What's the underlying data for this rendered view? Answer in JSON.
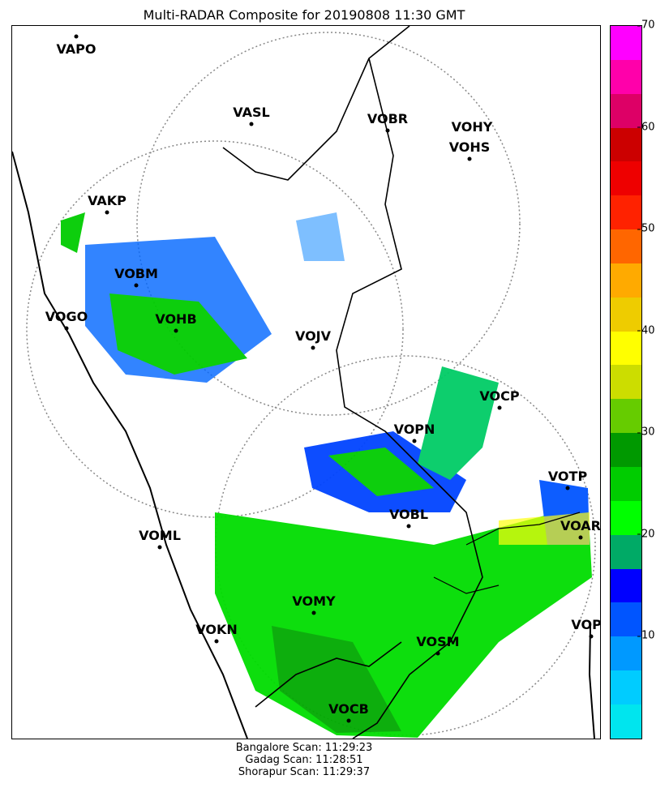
{
  "title": "Multi-RADAR Composite for 20190808 11:30 GMT",
  "stations": [
    {
      "name": "VAPO"
    },
    {
      "name": "VASL"
    },
    {
      "name": "VOBR"
    },
    {
      "name": "VOHY"
    },
    {
      "name": "VOHS"
    },
    {
      "name": "VAKP"
    },
    {
      "name": "VOBM"
    },
    {
      "name": "VOGO"
    },
    {
      "name": "VOHB"
    },
    {
      "name": "VOJV"
    },
    {
      "name": "VOCP"
    },
    {
      "name": "VOPN"
    },
    {
      "name": "VOTP"
    },
    {
      "name": "VOBL"
    },
    {
      "name": "VOAR"
    },
    {
      "name": "VOML"
    },
    {
      "name": "VOMY"
    },
    {
      "name": "VOKN"
    },
    {
      "name": "VOSM"
    },
    {
      "name": "VOPC"
    },
    {
      "name": "VOCB"
    }
  ],
  "colorbar": {
    "min": 0,
    "max": 70,
    "ticks": [
      "10",
      "20",
      "30",
      "40",
      "50",
      "60",
      "70"
    ],
    "colors": [
      "#00e5ee",
      "#00ccff",
      "#0099ff",
      "#0055ff",
      "#0000ff",
      "#00aa66",
      "#00ff00",
      "#00cc00",
      "#009900",
      "#66cc00",
      "#ccdd00",
      "#ffff00",
      "#eecc00",
      "#ffaa00",
      "#ff6600",
      "#ff2200",
      "#ee0000",
      "#cc0000",
      "#dd0066",
      "#ff00aa",
      "#ff00ff"
    ]
  },
  "scans": [
    "Bangalore Scan: 11:29:23",
    "Gadag Scan: 11:28:51",
    "Shorapur Scan: 11:29:37"
  ]
}
